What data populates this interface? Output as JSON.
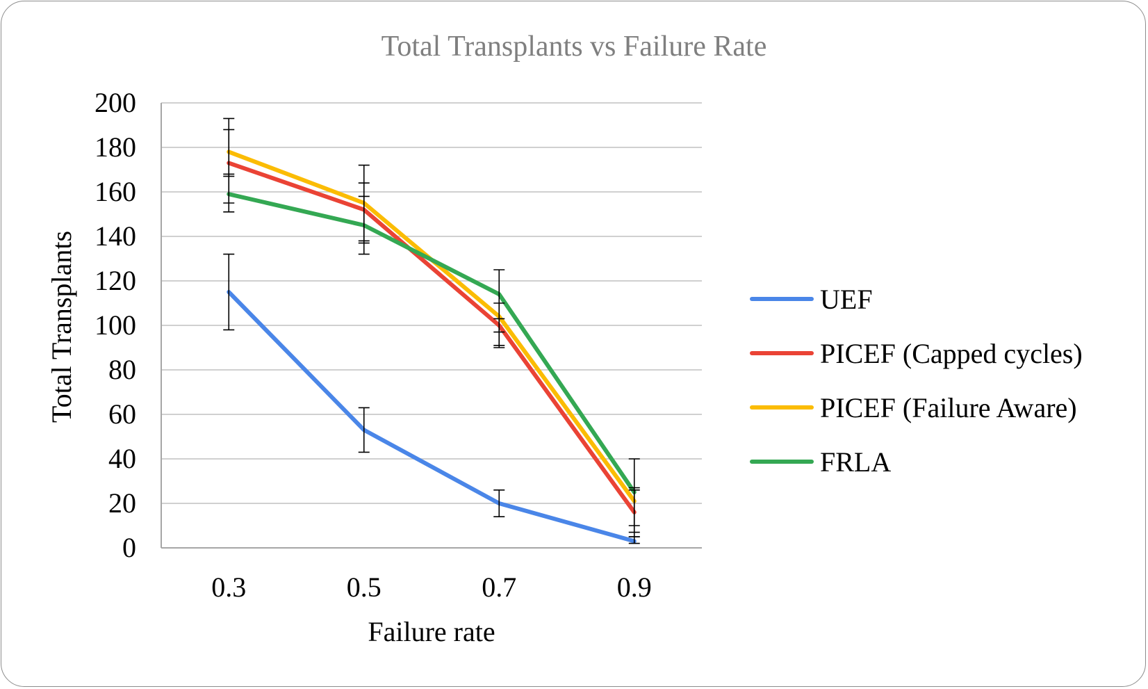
{
  "chart_data": {
    "type": "line",
    "title": "Total Transplants vs Failure Rate",
    "xlabel": "Failure rate",
    "ylabel": "Total Transplants",
    "categories": [
      "0.3",
      "0.5",
      "0.7",
      "0.9"
    ],
    "ylim": [
      0,
      200
    ],
    "yticks": [
      0,
      20,
      40,
      60,
      80,
      100,
      120,
      140,
      160,
      180,
      200
    ],
    "grid": true,
    "legend_position": "right",
    "series": [
      {
        "name": "UEF",
        "color": "#4a86e8",
        "values": [
          115,
          53,
          20,
          3
        ],
        "error_low": [
          98,
          43,
          14,
          2
        ],
        "error_high": [
          132,
          63,
          26,
          5
        ]
      },
      {
        "name": "PICEF (Capped cycles)",
        "color": "#ea4335",
        "values": [
          173,
          152,
          100,
          16
        ],
        "error_low": [
          155,
          137,
          90,
          7
        ],
        "error_high": [
          188,
          164,
          103,
          27
        ]
      },
      {
        "name": "PICEF (Failure Aware)",
        "color": "#fbbc04",
        "values": [
          178,
          155,
          104,
          21
        ],
        "error_low": [
          167,
          138,
          91,
          5
        ],
        "error_high": [
          193,
          172,
          110,
          26
        ]
      },
      {
        "name": "FRLA",
        "color": "#34a853",
        "values": [
          159,
          145,
          114,
          25
        ],
        "error_low": [
          151,
          132,
          97,
          10
        ],
        "error_high": [
          168,
          158,
          125,
          40
        ]
      }
    ]
  }
}
